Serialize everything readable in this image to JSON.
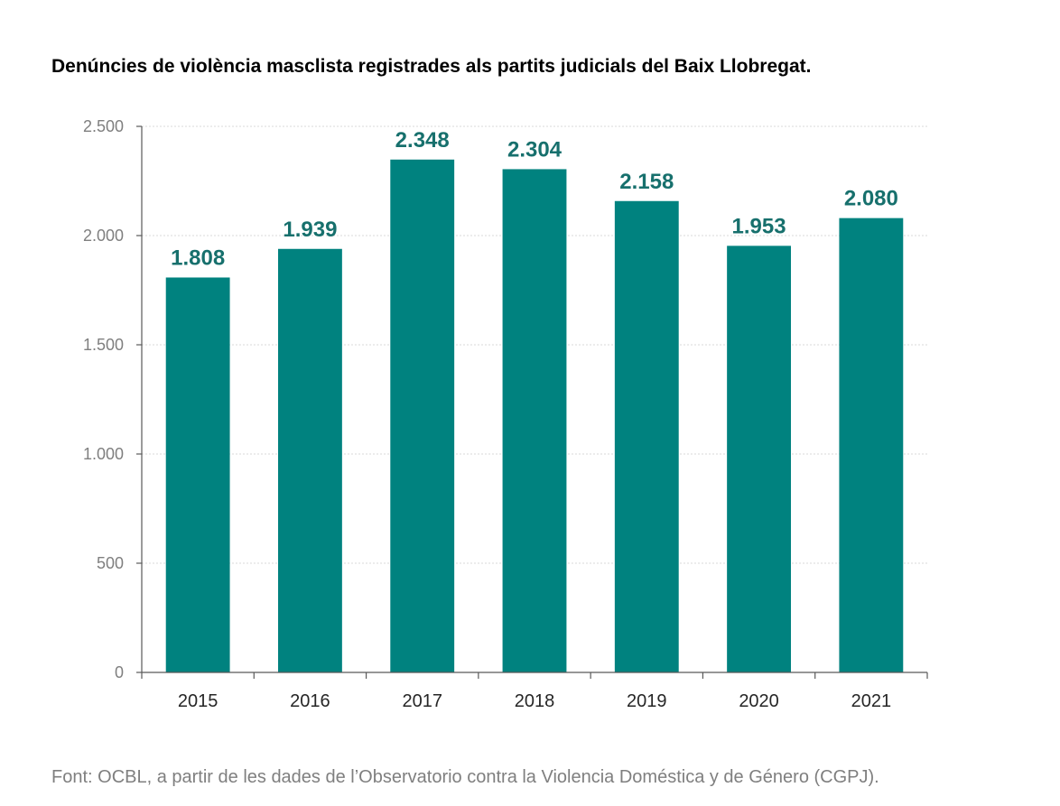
{
  "title": "Denúncies de violència masclista registrades als partits judicials del Baix Llobregat.",
  "source": "Font: OCBL, a partir de les dades de l’Observatorio contra la Violencia Doméstica y de Género (CGPJ).",
  "colors": {
    "bar": "#00827F",
    "data_label": "#17706D",
    "axis": "#595959",
    "gridline": "#d9d9d9"
  },
  "chart_data": {
    "type": "bar",
    "categories": [
      "2015",
      "2016",
      "2017",
      "2018",
      "2019",
      "2020",
      "2021"
    ],
    "values": [
      1808,
      1939,
      2348,
      2304,
      2158,
      1953,
      2080
    ],
    "data_labels": [
      "1.808",
      "1.939",
      "2.348",
      "2.304",
      "2.158",
      "1.953",
      "2.080"
    ],
    "y_ticks": [
      0,
      500,
      1000,
      1500,
      2000,
      2500
    ],
    "y_tick_labels": [
      "0",
      "500",
      "1.000",
      "1.500",
      "2.000",
      "2.500"
    ],
    "ylim": [
      0,
      2500
    ],
    "grid": true,
    "legend": "none"
  }
}
